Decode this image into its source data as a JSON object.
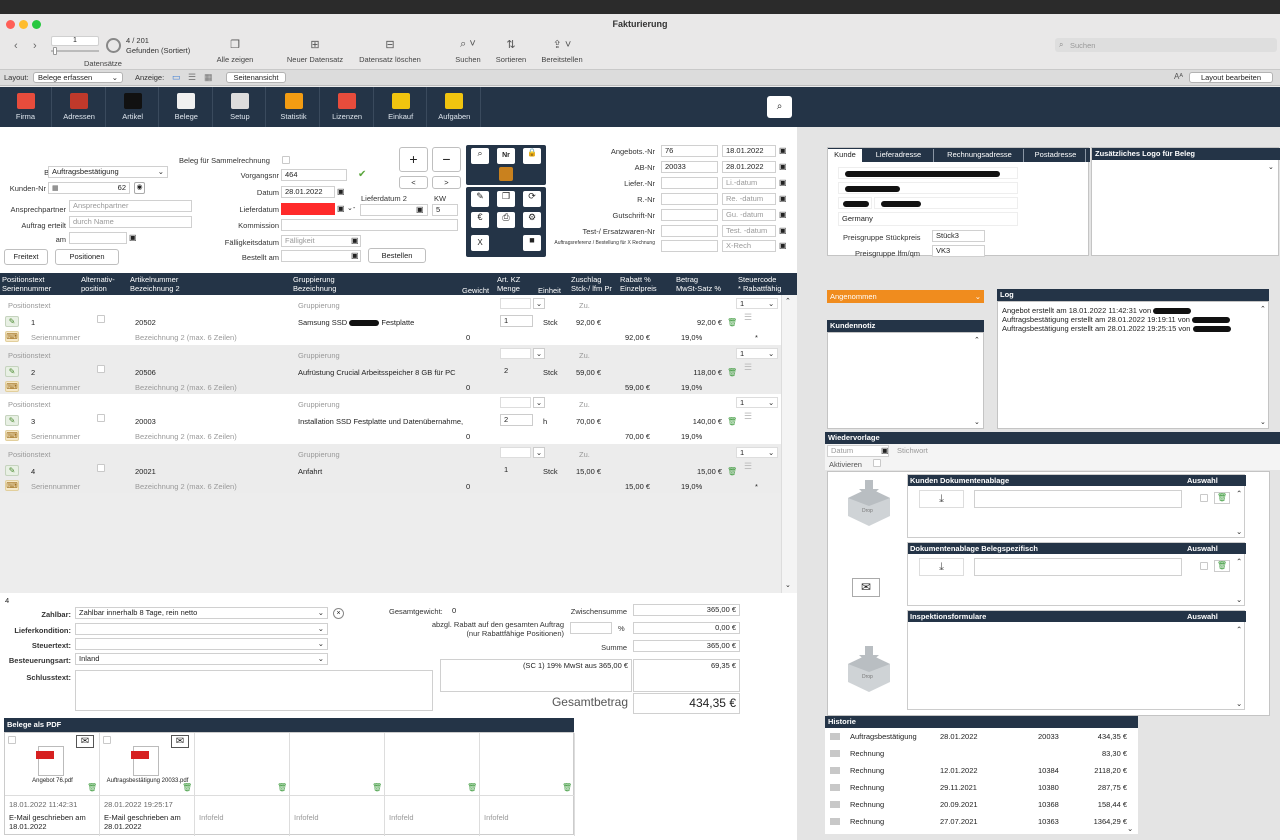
{
  "window": {
    "title": "Fakturierung"
  },
  "toolbar": {
    "record_field": "1",
    "record_count": "4 / 201",
    "found": "Gefunden (Sortiert)",
    "records_label": "Datensätze",
    "show_all": "Alle zeigen",
    "new_record": "Neuer Datensatz",
    "delete_record": "Datensatz löschen",
    "search": "Suchen",
    "sort": "Sortieren",
    "share": "Bereitstellen",
    "search_placeholder": "Suchen"
  },
  "layoutbar": {
    "layout_label": "Layout:",
    "layout_value": "Belege erfassen",
    "view_label": "Anzeige:",
    "page_view": "Seitenansicht",
    "edit_layout": "Layout bearbeiten"
  },
  "nav": [
    {
      "label": "Firma",
      "icon": "house-icon",
      "color": "#e74c3c"
    },
    {
      "label": "Adressen",
      "icon": "contacts-icon",
      "color": "#c0392b"
    },
    {
      "label": "Artikel",
      "icon": "articles-icon",
      "color": "#111111"
    },
    {
      "label": "Belege",
      "icon": "document-icon",
      "color": "#f0f0f0"
    },
    {
      "label": "Setup",
      "icon": "tools-icon",
      "color": "#dddddd"
    },
    {
      "label": "Statistik",
      "icon": "chart-icon",
      "color": "#f39c12"
    },
    {
      "label": "Lizenzen",
      "icon": "license-icon",
      "color": "#e74c3c"
    },
    {
      "label": "Einkauf",
      "icon": "purchase-icon",
      "color": "#f1c40f"
    },
    {
      "label": "Aufgaben",
      "icon": "tasks-icon",
      "color": "#f1c40f"
    }
  ],
  "form": {
    "belegart_label": "Belegart",
    "belegart": "Auftragsbestätigung",
    "sammel_label": "Beleg für Sammelrechnung",
    "kunden_label": "Kunden-Nr",
    "kunden_nr": "62",
    "vorgang_label": "Vorgangsnr",
    "vorgang": "464",
    "datum_label": "Datum",
    "datum": "28.01.2022",
    "lieferdatum_label": "Lieferdatum",
    "lieferdatum2_label": "Lieferdatum 2",
    "kw_label": "KW",
    "kw": "5",
    "ansprech_label": "Ansprechpartner",
    "ansprech_ph": "Ansprechpartner",
    "auftrag_label": "Auftrag erteilt",
    "auftrag_ph": "durch Name",
    "am_label": "am",
    "kommission_label": "Kommission",
    "faellig_label": "Fälligkeitsdatum",
    "faellig_ph": "Fälligkeit",
    "bestellt_label": "Bestellt am",
    "bestellen": "Bestellen",
    "freitext": "Freitext",
    "positionen": "Positionen"
  },
  "refs": [
    {
      "label": "Angebots.-Nr",
      "nr": "76",
      "date": "18.01.2022"
    },
    {
      "label": "AB-Nr",
      "nr": "20033",
      "date": "28.01.2022"
    },
    {
      "label": "Liefer.-Nr",
      "nr": "",
      "date": "",
      "ph": "Li.-datum"
    },
    {
      "label": "R.-Nr",
      "nr": "",
      "date": "",
      "ph": "Re. -datum"
    },
    {
      "label": "Gutschrift-Nr",
      "nr": "",
      "date": "",
      "ph": "Gu. -datum"
    },
    {
      "label": "Test-/ Ersatzwaren-Nr",
      "nr": "",
      "date": "",
      "ph": "Test. -datum"
    },
    {
      "label": "Auftragsreferenz / Bestellung für X Rechnung",
      "nr": "",
      "date": "",
      "ph": "X-Rech"
    }
  ],
  "table": {
    "headers": [
      "Positionstext",
      "Seriennummer",
      "Alternativ-",
      "position",
      "Artikelnummer",
      "Bezeichnung 2",
      "Gruppierung",
      "Bezeichnung",
      "Gewicht",
      "Art. KZ",
      "Menge",
      "Einheit",
      "Zuschlag",
      "Stck-/ lfm Pr",
      "Rabatt %",
      "Einzelpreis",
      "Betrag",
      "MwSt-Satz %",
      "Steuercode",
      "* Rabattfähig"
    ],
    "rows": [
      {
        "postext": "Positionstext",
        "pos": "1",
        "serial": "Seriennummer",
        "art": "20502",
        "bez2": "Bezeichnung 2 (max. 6 Zeilen)",
        "grp": "Gruppierung",
        "bez": "Samsung SSD ",
        "bez_tail": " Festplatte",
        "gew": "0",
        "menge": "1",
        "einheit": "Stck",
        "zu": "Zu.",
        "preis": "92,00 €",
        "einzel": "92,00 €",
        "betrag": "92,00 €",
        "mwst": "19,0%",
        "steuer": "1",
        "rab": "*"
      },
      {
        "postext": "Positionstext",
        "pos": "2",
        "serial": "Seriennummer",
        "art": "20506",
        "bez2": "Bezeichnung 2 (max. 6 Zeilen)",
        "grp": "Gruppierung",
        "bez": "Aufrüstung Crucial Arbeitsspeicher 8 GB für PC",
        "bez_tail": "",
        "gew": "0",
        "menge": "2",
        "einheit": "Stck",
        "zu": "Zu.",
        "preis": "59,00 €",
        "einzel": "59,00 €",
        "betrag": "118,00 €",
        "mwst": "19,0%",
        "steuer": "1",
        "rab": ""
      },
      {
        "postext": "Positionstext",
        "pos": "3",
        "serial": "Seriennummer",
        "art": "20003",
        "bez2": "Bezeichnung 2 (max. 6 Zeilen)",
        "grp": "Gruppierung",
        "bez": "Installation SSD Festplatte und Datenübernahme,",
        "bez_tail": "",
        "gew": "0",
        "menge": "2",
        "einheit": "h",
        "zu": "Zu.",
        "preis": "70,00 €",
        "einzel": "70,00 €",
        "betrag": "140,00 €",
        "mwst": "19,0%",
        "steuer": "1",
        "rab": ""
      },
      {
        "postext": "Positionstext",
        "pos": "4",
        "serial": "Seriennummer",
        "art": "20021",
        "bez2": "Bezeichnung 2 (max. 6 Zeilen)",
        "grp": "Gruppierung",
        "bez": "Anfahrt",
        "bez_tail": "",
        "gew": "0",
        "menge": "1",
        "einheit": "Stck",
        "zu": "Zu.",
        "preis": "15,00 €",
        "einzel": "15,00 €",
        "betrag": "15,00 €",
        "mwst": "19,0%",
        "steuer": "1",
        "rab": "*"
      }
    ],
    "new_row": {
      "art_ph": "Artikelnummer",
      "zu": "Zu."
    },
    "count": "4"
  },
  "footer": {
    "zahlbar_label": "Zahlbar:",
    "zahlbar": "Zahlbar innerhalb 8 Tage, rein netto",
    "liefer_label": "Lieferkondition:",
    "steuertext_label": "Steuertext:",
    "besteuerung_label": "Besteuerungsart:",
    "besteuerung": "Inland",
    "schluss_label": "Schlusstext:",
    "gewicht_label": "Gesamtgewicht:",
    "gewicht": "0",
    "rabatt_label": "abzgl. Rabatt auf den gesamten Auftrag",
    "rabatt_sub": "(nur Rabattfähige Positionen)",
    "rabatt_pct": "%",
    "zwischen_label": "Zwischensumme",
    "zwischen": "365,00 €",
    "rabatt_val": "0,00 €",
    "summe_label": "Summe",
    "summe": "365,00 €",
    "mwst_text": "(SC 1) 19% MwSt aus 365,00 €",
    "mwst": "69,35 €",
    "gesamt_label": "Gesamtbetrag",
    "gesamt": "434,35 €"
  },
  "pdf": {
    "title": "Belege als PDF",
    "items": [
      {
        "name": "Angebot 76.pdf",
        "ts": "18.01.2022 11:42:31",
        "info": "E-Mail geschrieben am 18.01.2022"
      },
      {
        "name": "Auftragsbestätigung 20033.pdf",
        "ts": "28.01.2022 19:25:17",
        "info": "E-Mail geschrieben am 28.01.2022"
      },
      {
        "name": "",
        "ts": "",
        "info": "Infofeld"
      },
      {
        "name": "",
        "ts": "",
        "info": "Infofeld"
      },
      {
        "name": "",
        "ts": "",
        "info": "Infofeld"
      },
      {
        "name": "",
        "ts": "",
        "info": "Infofeld"
      }
    ]
  },
  "customer": {
    "tabs": [
      "Kunde",
      "Lieferadresse",
      "Rechnungsadresse",
      "Postadresse"
    ],
    "country": "Germany",
    "preis_stk_label": "Preisgruppe Stückpreis",
    "preis_stk": "Stück3",
    "preis_lfm_label": "Preisgruppe lfm/qm",
    "preis_lfm": "VK3",
    "logo_label": "Zusätzliches Logo für Beleg"
  },
  "status": "Angenommen",
  "log": {
    "title": "Log",
    "lines": [
      "Angebot erstellt am 18.01.2022 11:42:31 von ",
      "Auftragsbestätigung erstellt am 28.01.2022 19:19:11 von ",
      "Auftragsbestätigung erstellt am 28.01.2022 19:25:15 von "
    ]
  },
  "kundennotiz": "Kundennotiz",
  "wiedervorlage": {
    "title": "Wiedervorlage",
    "datum_ph": "Datum",
    "stichwort_ph": "Stichwort",
    "aktivieren": "Aktivieren"
  },
  "docs": [
    {
      "title": "Kunden Dokumentenablage",
      "auswahl": "Auswahl"
    },
    {
      "title": "Dokumentenablage Belegspezifisch",
      "auswahl": "Auswahl"
    },
    {
      "title": "Inspektionsformulare",
      "auswahl": "Auswahl"
    }
  ],
  "drop": "Drop",
  "historie": {
    "title": "Historie",
    "rows": [
      {
        "type": "Auftragsbestätigung",
        "date": "28.01.2022",
        "nr": "20033",
        "amount": "434,35 €"
      },
      {
        "type": "Rechnung",
        "date": "",
        "nr": "",
        "amount": "83,30 €"
      },
      {
        "type": "Rechnung",
        "date": "12.01.2022",
        "nr": "10384",
        "amount": "2118,20 €"
      },
      {
        "type": "Rechnung",
        "date": "29.11.2021",
        "nr": "10380",
        "amount": "287,75 €"
      },
      {
        "type": "Rechnung",
        "date": "20.09.2021",
        "nr": "10368",
        "amount": "158,44 €"
      },
      {
        "type": "Rechnung",
        "date": "27.07.2021",
        "nr": "10363",
        "amount": "1364,29 €"
      }
    ]
  }
}
